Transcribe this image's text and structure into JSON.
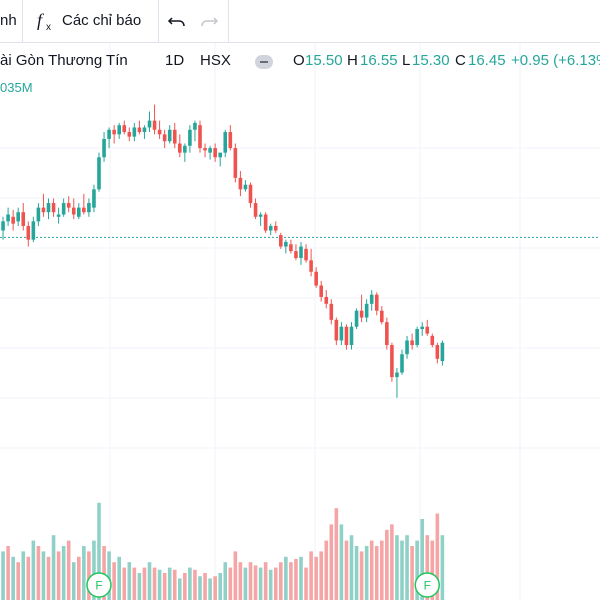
{
  "toolbar": {
    "left_fragment": "nh",
    "indicators_label": "Các chỉ báo",
    "fx_icon": "function-icon",
    "undo_icon": "undo-icon",
    "redo_icon": "redo-icon"
  },
  "legend": {
    "symbol_title": "ài Gòn Thương Tín",
    "interval": "1D",
    "exchange": "HSX",
    "open_label": "O",
    "open_value": "15.50",
    "high_label": "H",
    "high_value": "16.55",
    "low_label": "L",
    "low_value": "15.30",
    "close_label": "C",
    "close_value": "16.45",
    "change": "+0.95 (+6.13%"
  },
  "volume_label": "035M",
  "colors": {
    "up": "#26a69a",
    "down": "#ef5350",
    "vol_up": "#8fd1c7",
    "vol_down": "#f5a5a5",
    "event": "#22c55e",
    "grid": "#f0f3fa"
  },
  "chart_data": {
    "type": "candlestick",
    "close_price": 16.45,
    "candles": [
      {
        "o": 16.4,
        "h": 16.8,
        "l": 16.2,
        "c": 16.6
      },
      {
        "o": 16.6,
        "h": 16.9,
        "l": 16.4,
        "c": 16.8
      },
      {
        "o": 16.8,
        "h": 17.1,
        "l": 16.7,
        "c": 16.95
      },
      {
        "o": 16.9,
        "h": 17.05,
        "l": 16.6,
        "c": 16.75
      },
      {
        "o": 16.8,
        "h": 17.1,
        "l": 16.7,
        "c": 17.0
      },
      {
        "o": 17.0,
        "h": 17.2,
        "l": 16.6,
        "c": 16.7
      },
      {
        "o": 16.7,
        "h": 16.8,
        "l": 16.25,
        "c": 16.4
      },
      {
        "o": 16.4,
        "h": 16.9,
        "l": 16.35,
        "c": 16.8
      },
      {
        "o": 16.8,
        "h": 17.2,
        "l": 16.7,
        "c": 17.1
      },
      {
        "o": 17.1,
        "h": 17.4,
        "l": 16.9,
        "c": 17.0
      },
      {
        "o": 17.0,
        "h": 17.3,
        "l": 16.85,
        "c": 17.2
      },
      {
        "o": 17.2,
        "h": 17.3,
        "l": 16.9,
        "c": 17.0
      },
      {
        "o": 16.9,
        "h": 17.1,
        "l": 16.75,
        "c": 16.95
      },
      {
        "o": 16.95,
        "h": 17.3,
        "l": 16.9,
        "c": 17.2
      },
      {
        "o": 17.2,
        "h": 17.35,
        "l": 17.0,
        "c": 17.1
      },
      {
        "o": 17.1,
        "h": 17.3,
        "l": 16.85,
        "c": 16.95
      },
      {
        "o": 16.9,
        "h": 17.2,
        "l": 16.85,
        "c": 17.1
      },
      {
        "o": 17.1,
        "h": 17.4,
        "l": 16.95,
        "c": 17.0
      },
      {
        "o": 17.0,
        "h": 17.3,
        "l": 16.9,
        "c": 17.2
      },
      {
        "o": 17.1,
        "h": 17.6,
        "l": 17.0,
        "c": 17.5
      },
      {
        "o": 17.5,
        "h": 18.3,
        "l": 17.45,
        "c": 18.2
      },
      {
        "o": 18.2,
        "h": 18.75,
        "l": 18.1,
        "c": 18.6
      },
      {
        "o": 18.6,
        "h": 18.85,
        "l": 18.4,
        "c": 18.8
      },
      {
        "o": 18.8,
        "h": 18.9,
        "l": 18.5,
        "c": 18.7
      },
      {
        "o": 18.7,
        "h": 18.95,
        "l": 18.6,
        "c": 18.9
      },
      {
        "o": 18.9,
        "h": 19.0,
        "l": 18.7,
        "c": 18.75
      },
      {
        "o": 18.75,
        "h": 18.85,
        "l": 18.55,
        "c": 18.65
      },
      {
        "o": 18.65,
        "h": 18.95,
        "l": 18.55,
        "c": 18.85
      },
      {
        "o": 18.85,
        "h": 19.0,
        "l": 18.7,
        "c": 18.75
      },
      {
        "o": 18.75,
        "h": 18.9,
        "l": 18.6,
        "c": 18.85
      },
      {
        "o": 18.85,
        "h": 19.2,
        "l": 18.75,
        "c": 19.0
      },
      {
        "o": 19.0,
        "h": 19.35,
        "l": 18.7,
        "c": 18.8
      },
      {
        "o": 18.8,
        "h": 19.0,
        "l": 18.6,
        "c": 18.7
      },
      {
        "o": 18.7,
        "h": 18.8,
        "l": 18.4,
        "c": 18.55
      },
      {
        "o": 18.55,
        "h": 18.9,
        "l": 18.5,
        "c": 18.8
      },
      {
        "o": 18.8,
        "h": 18.95,
        "l": 18.4,
        "c": 18.5
      },
      {
        "o": 18.5,
        "h": 18.7,
        "l": 18.2,
        "c": 18.3
      },
      {
        "o": 18.3,
        "h": 18.5,
        "l": 18.1,
        "c": 18.45
      },
      {
        "o": 18.45,
        "h": 18.9,
        "l": 18.3,
        "c": 18.8
      },
      {
        "o": 18.8,
        "h": 19.0,
        "l": 18.55,
        "c": 18.95
      },
      {
        "o": 18.9,
        "h": 19.0,
        "l": 18.3,
        "c": 18.4
      },
      {
        "o": 18.4,
        "h": 18.5,
        "l": 18.2,
        "c": 18.35
      },
      {
        "o": 18.3,
        "h": 18.45,
        "l": 18.15,
        "c": 18.4
      },
      {
        "o": 18.4,
        "h": 18.5,
        "l": 18.1,
        "c": 18.2
      },
      {
        "o": 18.2,
        "h": 18.3,
        "l": 18.0,
        "c": 18.3
      },
      {
        "o": 18.3,
        "h": 18.8,
        "l": 18.2,
        "c": 18.75
      },
      {
        "o": 18.75,
        "h": 18.9,
        "l": 18.35,
        "c": 18.4
      },
      {
        "o": 18.4,
        "h": 18.5,
        "l": 17.65,
        "c": 17.75
      },
      {
        "o": 17.75,
        "h": 17.9,
        "l": 17.35,
        "c": 17.5
      },
      {
        "o": 17.5,
        "h": 17.7,
        "l": 17.45,
        "c": 17.6
      },
      {
        "o": 17.6,
        "h": 17.65,
        "l": 17.1,
        "c": 17.2
      },
      {
        "o": 17.2,
        "h": 17.3,
        "l": 16.85,
        "c": 16.9
      },
      {
        "o": 16.9,
        "h": 17.0,
        "l": 16.7,
        "c": 16.95
      },
      {
        "o": 16.95,
        "h": 17.0,
        "l": 16.55,
        "c": 16.6
      },
      {
        "o": 16.6,
        "h": 16.75,
        "l": 16.5,
        "c": 16.7
      },
      {
        "o": 16.7,
        "h": 16.8,
        "l": 16.55,
        "c": 16.6
      },
      {
        "o": 16.5,
        "h": 16.55,
        "l": 16.2,
        "c": 16.25
      },
      {
        "o": 16.25,
        "h": 16.4,
        "l": 16.1,
        "c": 16.35
      },
      {
        "o": 16.3,
        "h": 16.4,
        "l": 16.1,
        "c": 16.15
      },
      {
        "o": 16.15,
        "h": 16.3,
        "l": 15.95,
        "c": 16.0
      },
      {
        "o": 16.0,
        "h": 16.35,
        "l": 15.85,
        "c": 16.25
      },
      {
        "o": 16.2,
        "h": 16.3,
        "l": 15.9,
        "c": 15.95
      },
      {
        "o": 15.95,
        "h": 16.2,
        "l": 15.6,
        "c": 15.7
      },
      {
        "o": 15.7,
        "h": 15.8,
        "l": 15.35,
        "c": 15.4
      },
      {
        "o": 15.4,
        "h": 15.5,
        "l": 15.05,
        "c": 15.15
      },
      {
        "o": 15.15,
        "h": 15.3,
        "l": 14.9,
        "c": 15.0
      },
      {
        "o": 15.0,
        "h": 15.1,
        "l": 14.55,
        "c": 14.65
      },
      {
        "o": 14.65,
        "h": 14.7,
        "l": 14.1,
        "c": 14.2
      },
      {
        "o": 14.2,
        "h": 14.6,
        "l": 14.1,
        "c": 14.5
      },
      {
        "o": 14.5,
        "h": 14.55,
        "l": 14.0,
        "c": 14.1
      },
      {
        "o": 14.1,
        "h": 14.6,
        "l": 14.0,
        "c": 14.5
      },
      {
        "o": 14.5,
        "h": 14.9,
        "l": 14.45,
        "c": 14.85
      },
      {
        "o": 14.85,
        "h": 15.2,
        "l": 14.6,
        "c": 14.7
      },
      {
        "o": 14.7,
        "h": 15.1,
        "l": 14.6,
        "c": 15.0
      },
      {
        "o": 15.0,
        "h": 15.3,
        "l": 14.85,
        "c": 15.2
      },
      {
        "o": 15.2,
        "h": 15.25,
        "l": 14.75,
        "c": 14.85
      },
      {
        "o": 14.85,
        "h": 14.95,
        "l": 14.55,
        "c": 14.6
      },
      {
        "o": 14.6,
        "h": 14.7,
        "l": 14.0,
        "c": 14.1
      },
      {
        "o": 14.1,
        "h": 14.15,
        "l": 13.3,
        "c": 13.4
      },
      {
        "o": 13.4,
        "h": 13.6,
        "l": 12.95,
        "c": 13.5
      },
      {
        "o": 13.5,
        "h": 14.0,
        "l": 13.45,
        "c": 13.9
      },
      {
        "o": 13.9,
        "h": 14.3,
        "l": 13.8,
        "c": 14.2
      },
      {
        "o": 14.2,
        "h": 14.35,
        "l": 14.0,
        "c": 14.1
      },
      {
        "o": 14.1,
        "h": 14.5,
        "l": 14.05,
        "c": 14.45
      },
      {
        "o": 14.45,
        "h": 14.6,
        "l": 14.3,
        "c": 14.5
      },
      {
        "o": 14.5,
        "h": 14.65,
        "l": 14.3,
        "c": 14.35
      },
      {
        "o": 14.3,
        "h": 14.35,
        "l": 14.05,
        "c": 14.1
      },
      {
        "o": 14.1,
        "h": 14.15,
        "l": 13.7,
        "c": 13.8
      },
      {
        "o": 13.75,
        "h": 14.2,
        "l": 13.65,
        "c": 14.15
      }
    ],
    "volumes": [
      {
        "v": 0.55,
        "up": false
      },
      {
        "v": 0.45,
        "up": true
      },
      {
        "v": 0.5,
        "up": false
      },
      {
        "v": 0.4,
        "up": true
      },
      {
        "v": 0.35,
        "up": false
      },
      {
        "v": 0.45,
        "up": true
      },
      {
        "v": 0.4,
        "up": false
      },
      {
        "v": 0.55,
        "up": true
      },
      {
        "v": 0.5,
        "up": false
      },
      {
        "v": 0.45,
        "up": true
      },
      {
        "v": 0.4,
        "up": false
      },
      {
        "v": 0.6,
        "up": true
      },
      {
        "v": 0.45,
        "up": false
      },
      {
        "v": 0.5,
        "up": true
      },
      {
        "v": 0.55,
        "up": false
      },
      {
        "v": 0.35,
        "up": true
      },
      {
        "v": 0.4,
        "up": false
      },
      {
        "v": 0.5,
        "up": true
      },
      {
        "v": 0.45,
        "up": false
      },
      {
        "v": 0.55,
        "up": true
      },
      {
        "v": 0.9,
        "up": true
      },
      {
        "v": 0.5,
        "up": false
      },
      {
        "v": 0.45,
        "up": true
      },
      {
        "v": 0.35,
        "up": false
      },
      {
        "v": 0.4,
        "up": true
      },
      {
        "v": 0.3,
        "up": false
      },
      {
        "v": 0.35,
        "up": true
      },
      {
        "v": 0.3,
        "up": false
      },
      {
        "v": 0.25,
        "up": true
      },
      {
        "v": 0.3,
        "up": false
      },
      {
        "v": 0.35,
        "up": true
      },
      {
        "v": 0.3,
        "up": false
      },
      {
        "v": 0.28,
        "up": true
      },
      {
        "v": 0.25,
        "up": false
      },
      {
        "v": 0.3,
        "up": true
      },
      {
        "v": 0.28,
        "up": false
      },
      {
        "v": 0.2,
        "up": true
      },
      {
        "v": 0.25,
        "up": false
      },
      {
        "v": 0.3,
        "up": true
      },
      {
        "v": 0.28,
        "up": false
      },
      {
        "v": 0.22,
        "up": true
      },
      {
        "v": 0.25,
        "up": false
      },
      {
        "v": 0.2,
        "up": true
      },
      {
        "v": 0.22,
        "up": false
      },
      {
        "v": 0.25,
        "up": true
      },
      {
        "v": 0.35,
        "up": true
      },
      {
        "v": 0.3,
        "up": false
      },
      {
        "v": 0.45,
        "up": false
      },
      {
        "v": 0.35,
        "up": false
      },
      {
        "v": 0.3,
        "up": true
      },
      {
        "v": 0.35,
        "up": false
      },
      {
        "v": 0.32,
        "up": false
      },
      {
        "v": 0.3,
        "up": true
      },
      {
        "v": 0.35,
        "up": false
      },
      {
        "v": 0.28,
        "up": true
      },
      {
        "v": 0.3,
        "up": false
      },
      {
        "v": 0.35,
        "up": false
      },
      {
        "v": 0.4,
        "up": true
      },
      {
        "v": 0.35,
        "up": false
      },
      {
        "v": 0.38,
        "up": false
      },
      {
        "v": 0.4,
        "up": true
      },
      {
        "v": 0.3,
        "up": false
      },
      {
        "v": 0.45,
        "up": false
      },
      {
        "v": 0.4,
        "up": false
      },
      {
        "v": 0.45,
        "up": false
      },
      {
        "v": 0.55,
        "up": false
      },
      {
        "v": 0.7,
        "up": false
      },
      {
        "v": 0.85,
        "up": false
      },
      {
        "v": 0.7,
        "up": true
      },
      {
        "v": 0.55,
        "up": false
      },
      {
        "v": 0.6,
        "up": true
      },
      {
        "v": 0.5,
        "up": true
      },
      {
        "v": 0.45,
        "up": false
      },
      {
        "v": 0.5,
        "up": true
      },
      {
        "v": 0.55,
        "up": false
      },
      {
        "v": 0.5,
        "up": false
      },
      {
        "v": 0.55,
        "up": false
      },
      {
        "v": 0.65,
        "up": false
      },
      {
        "v": 0.7,
        "up": false
      },
      {
        "v": 0.6,
        "up": true
      },
      {
        "v": 0.55,
        "up": true
      },
      {
        "v": 0.6,
        "up": true
      },
      {
        "v": 0.5,
        "up": false
      },
      {
        "v": 0.55,
        "up": true
      },
      {
        "v": 0.75,
        "up": true
      },
      {
        "v": 0.6,
        "up": false
      },
      {
        "v": 0.55,
        "up": false
      },
      {
        "v": 0.8,
        "up": false
      },
      {
        "v": 0.6,
        "up": true
      }
    ],
    "events": [
      {
        "index": 20,
        "label": "F"
      },
      {
        "index": 85,
        "label": "F"
      }
    ]
  }
}
